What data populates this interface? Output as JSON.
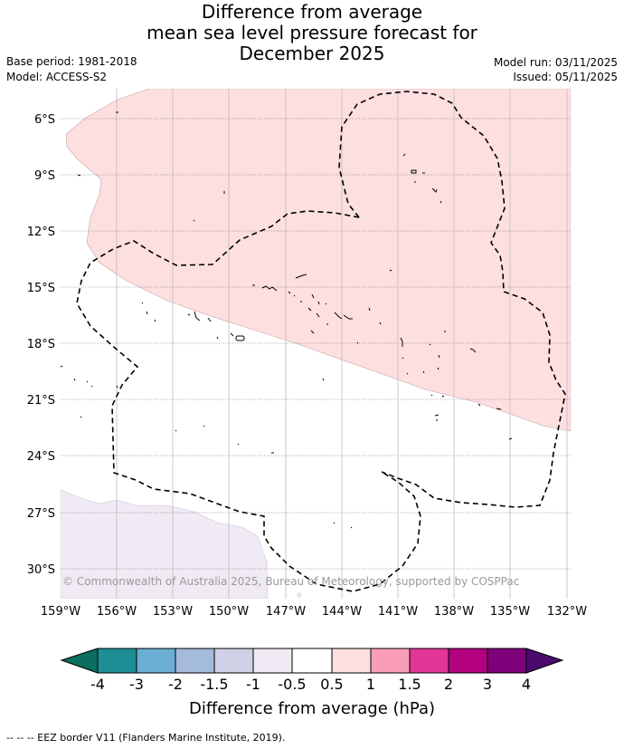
{
  "title": {
    "line1": "Difference from average",
    "line2": "mean sea level pressure forecast for",
    "line3": "December 2025"
  },
  "meta": {
    "base_period": "Base period: 1981-2018",
    "model": "Model: ACCESS-S2",
    "model_run": "Model run: 03/11/2025",
    "issued": "Issued: 05/11/2025"
  },
  "map": {
    "latitude_labels": [
      "6°S",
      "9°S",
      "12°S",
      "15°S",
      "18°S",
      "21°S",
      "24°S",
      "27°S",
      "30°S"
    ],
    "longitude_labels": [
      "159°W",
      "156°W",
      "153°W",
      "150°W",
      "147°W",
      "144°W",
      "141°W",
      "138°W",
      "135°W",
      "132°W"
    ],
    "copyright": "© Commonwealth of Australia 2025, Bureau of Meteorology, supported by COSPPac"
  },
  "colorbar": {
    "title": "Difference from average (hPa)",
    "tick_labels": [
      "-4",
      "-3",
      "-2",
      "-1.5",
      "-1",
      "-0.5",
      "0.5",
      "1",
      "1.5",
      "2",
      "3",
      "4"
    ],
    "colors": [
      "#0b6e5e",
      "#1d8f94",
      "#6aaed4",
      "#a5bbdc",
      "#cfd1e6",
      "#efeaf3",
      "#ffffff",
      "#fddfe0",
      "#f99db8",
      "#e13597",
      "#b3007f",
      "#7e017a",
      "#4a0b6b"
    ]
  },
  "footer": {
    "legend_text": "--  --  -- EEZ border V11 (Flanders Marine Institute, 2019)."
  }
}
